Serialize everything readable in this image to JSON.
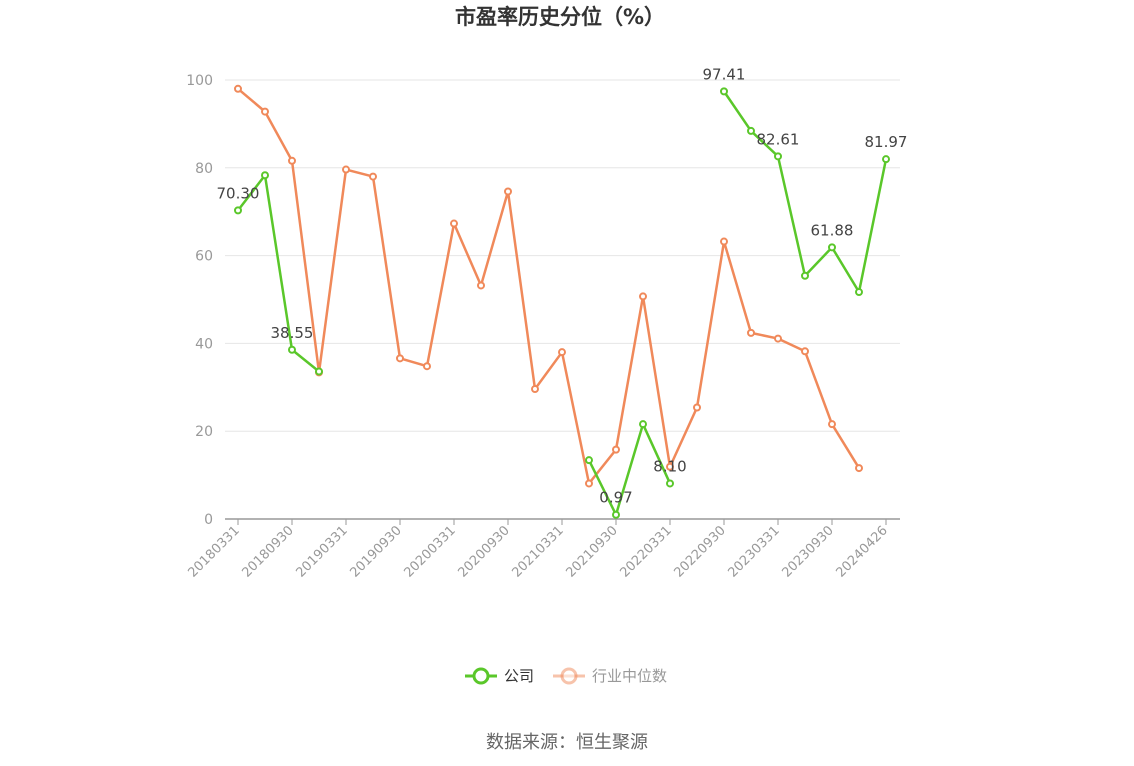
{
  "source_text": "数据来源：恒生聚源",
  "chart_data": {
    "type": "line",
    "title": "市盈率历史分位（%）",
    "xlabel": "",
    "ylabel": "",
    "ylim": [
      0,
      100
    ],
    "yticks": [
      0,
      20,
      40,
      60,
      80,
      100
    ],
    "grid": true,
    "legend": "bottom",
    "x": [
      "20180331",
      "20180630",
      "20180930",
      "20181231",
      "20190331",
      "20190630",
      "20190930",
      "20191231",
      "20200331",
      "20200630",
      "20200930",
      "20201231",
      "20210331",
      "20210630",
      "20210930",
      "20211231",
      "20220331",
      "20220630",
      "20220930",
      "20221231",
      "20230331",
      "20230630",
      "20230930",
      "20231231",
      "20240426"
    ],
    "xtick_labels": [
      "20180331",
      "20180930",
      "20190331",
      "20190930",
      "20200331",
      "20200930",
      "20210331",
      "20210930",
      "20220331",
      "20220930",
      "20230331",
      "20230930",
      "20240426"
    ],
    "series": [
      {
        "name": "公司",
        "color": "#5ac72a",
        "values": [
          70.3,
          78.3,
          38.55,
          33.6,
          null,
          null,
          null,
          null,
          null,
          null,
          null,
          null,
          null,
          13.4,
          0.97,
          21.6,
          8.1,
          null,
          97.41,
          88.4,
          82.61,
          55.4,
          61.88,
          51.7,
          81.97
        ],
        "labels": {
          "0": "70.30",
          "2": "38.55",
          "14": "0.97",
          "16": "8.10",
          "18": "97.41",
          "20": "82.61",
          "22": "61.88",
          "24": "81.97"
        }
      },
      {
        "name": "行业中位数",
        "color": "#f0895a",
        "values": [
          98.0,
          92.8,
          81.6,
          33.4,
          79.6,
          78.0,
          36.6,
          34.8,
          67.3,
          53.2,
          74.6,
          29.6,
          38.0,
          8.1,
          15.8,
          50.7,
          11.9,
          25.4,
          63.2,
          42.4,
          41.1,
          38.2,
          21.6,
          11.6,
          null
        ]
      }
    ]
  }
}
